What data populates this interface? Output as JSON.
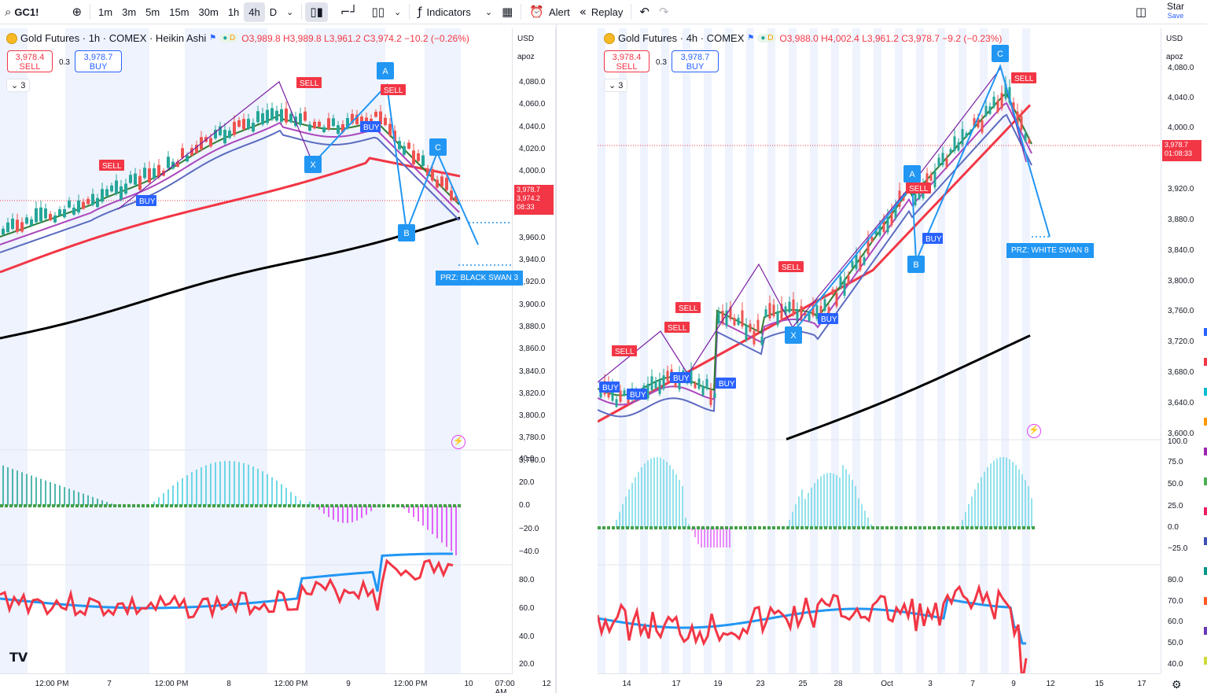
{
  "toolbar": {
    "search_icon": "search-icon",
    "symbol": "GC1!",
    "add_icon": "plus-circle-icon",
    "intervals": [
      "1m",
      "3m",
      "5m",
      "15m",
      "30m",
      "1h",
      "4h",
      "D"
    ],
    "active_interval": "4h",
    "indicators_label": "Indicators",
    "alert_label": "Alert",
    "replay_label": "Replay",
    "star_label": "Star",
    "save_label": "Save"
  },
  "chart_left": {
    "title": "Gold Futures · 1h · COMEX · Heikin Ashi",
    "badge": "D",
    "ohlc": {
      "o": "O3,989.8",
      "h": "H3,989.8",
      "l": "L3,961.2",
      "c": "C3,974.2",
      "chg": "−10.2 (−0.26%)"
    },
    "sell_price": "3,978.4",
    "sell_label": "SELL",
    "buy_price": "3,978.7",
    "buy_label": "BUY",
    "spread": "0.3",
    "collapse_count": "3",
    "currency": "USD",
    "scale_mode": "apoz",
    "price_ticks": [
      "4,080.0",
      "4,060.0",
      "4,040.0",
      "4,020.0",
      "4,000.0",
      "3,960.0",
      "3,940.0",
      "3,920.0",
      "3,900.0",
      "3,880.0",
      "3,860.0",
      "3,840.0",
      "3,820.0",
      "3,800.0",
      "3,780.0",
      "3,760.0"
    ],
    "price_tag": [
      "3,978.7",
      "3,974.2",
      "08:33"
    ],
    "osc_ticks": [
      "40.0",
      "20.0",
      "0.0",
      "−20.0",
      "−40.0"
    ],
    "rsi_ticks": [
      "80.0",
      "60.0",
      "40.0",
      "20.0"
    ],
    "time_ticks": [
      "12:00 PM",
      "7",
      "12:00 PM",
      "8",
      "12:00 PM",
      "9",
      "12:00 PM",
      "10",
      "07:00 AM",
      "12"
    ],
    "prz_label": "PRZ: BLACK SWAN 3",
    "points": [
      "X",
      "A",
      "B",
      "C"
    ],
    "signals": [
      "SELL",
      "SELL",
      "SELL",
      "BUY",
      "BUY"
    ]
  },
  "chart_right": {
    "title": "Gold Futures · 4h · COMEX",
    "badge": "D",
    "ohlc": {
      "o": "O3,988.0",
      "h": "H4,002.4",
      "l": "L3,961.2",
      "c": "C3,978.7",
      "chg": "−9.2 (−0.23%)"
    },
    "sell_price": "3,978.4",
    "sell_label": "SELL",
    "buy_price": "3,978.7",
    "buy_label": "BUY",
    "spread": "0.3",
    "collapse_count": "3",
    "currency": "USD",
    "scale_mode": "apoz",
    "price_ticks": [
      "4,080.0",
      "4,040.0",
      "4,000.0",
      "3,920.0",
      "3,880.0",
      "3,840.0",
      "3,800.0",
      "3,760.0",
      "3,720.0",
      "3,680.0",
      "3,640.0",
      "3,600.0"
    ],
    "price_tag": [
      "3,978.7",
      "01:08:33"
    ],
    "osc_ticks": [
      "100.0",
      "75.0",
      "50.0",
      "25.0",
      "0.0",
      "−25.0"
    ],
    "rsi_ticks": [
      "80.0",
      "70.0",
      "60.0",
      "50.0",
      "40.0"
    ],
    "time_ticks": [
      "14",
      "17",
      "19",
      "23",
      "25",
      "28",
      "Oct",
      "3",
      "7",
      "9",
      "12",
      "15",
      "17"
    ],
    "prz_label": "PRZ: WHITE SWAN 8",
    "points": [
      "X",
      "A",
      "B",
      "C"
    ],
    "signals": [
      "SELL",
      "SELL",
      "SELL",
      "SELL",
      "SELL",
      "SELL",
      "BUY",
      "BUY",
      "BUY",
      "BUY",
      "BUY",
      "BUY"
    ]
  },
  "colors": {
    "up": "#26a69a",
    "down": "#ef5350",
    "ema_red": "#f23645",
    "ema_black": "#000000",
    "harmonic": "#2196f3",
    "purple": "#7b1fa2",
    "session": "#eef3fd"
  }
}
